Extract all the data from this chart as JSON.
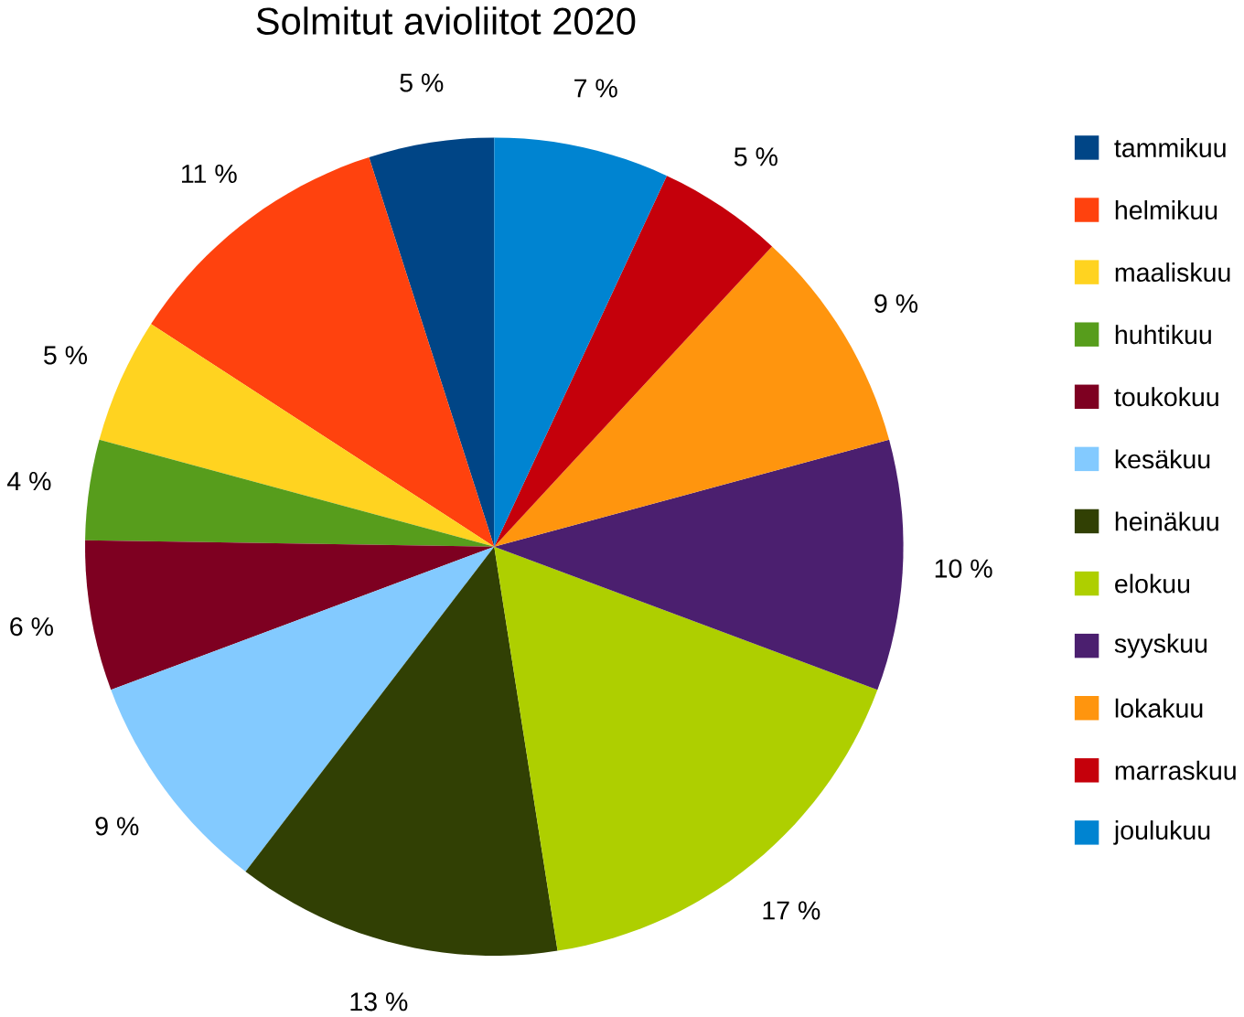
{
  "chart_data": {
    "type": "pie",
    "title": "Solmitut avioliitot 2020",
    "categories": [
      "tammikuu",
      "helmikuu",
      "maaliskuu",
      "huhtikuu",
      "toukokuu",
      "kesäkuu",
      "heinäkuu",
      "elokuu",
      "syyskuu",
      "lokakuu",
      "marraskuu",
      "joulukuu"
    ],
    "values": [
      5,
      11,
      5,
      4,
      6,
      9,
      13,
      17,
      10,
      9,
      5,
      7
    ],
    "value_labels": [
      "5 %",
      "11 %",
      "5 %",
      "4 %",
      "6 %",
      "9 %",
      "13 %",
      "17 %",
      "10 %",
      "9 %",
      "5 %",
      "7 %"
    ],
    "colors": [
      "#004586",
      "#ff420e",
      "#ffd320",
      "#579d1c",
      "#7e0021",
      "#83caff",
      "#314004",
      "#aecf00",
      "#4b1f6f",
      "#ff950e",
      "#c5000b",
      "#0084d1"
    ],
    "legend": "right"
  }
}
